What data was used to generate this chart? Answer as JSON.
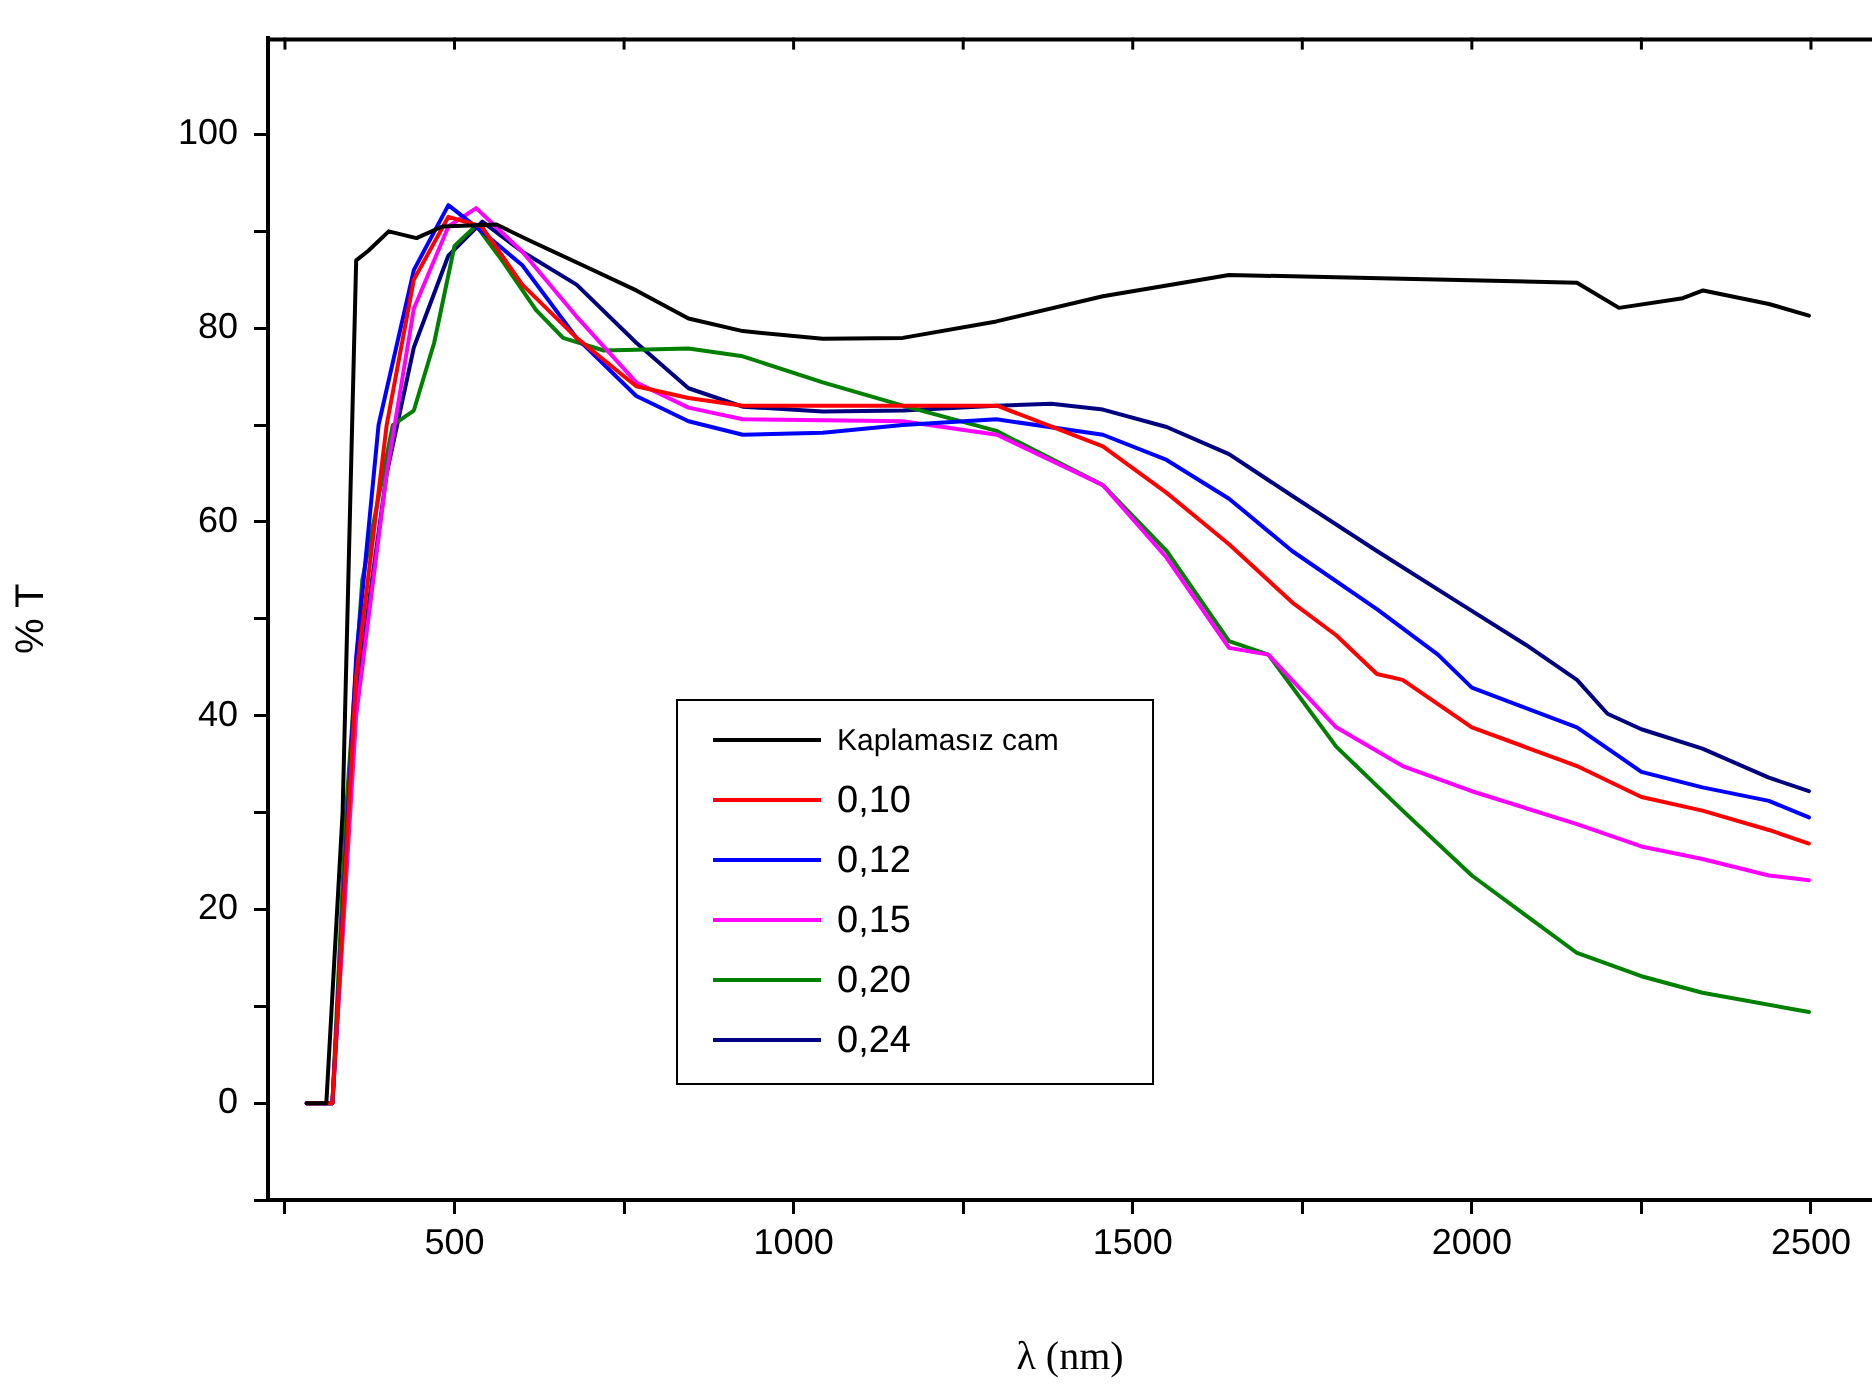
{
  "chart_data": {
    "type": "line",
    "xlabel": "λ (nm)",
    "ylabel": "% T",
    "xlim": [
      225,
      2590
    ],
    "ylim": [
      -10,
      110
    ],
    "xticks": [
      {
        "value": 250,
        "label": null
      },
      500,
      {
        "value": 750,
        "label": null
      },
      1000,
      {
        "value": 1250,
        "label": null
      },
      1500,
      {
        "value": 1750,
        "label": null
      },
      2000,
      {
        "value": 2250,
        "label": null
      },
      2500
    ],
    "yticks": [
      {
        "value": -10,
        "label": null
      },
      0,
      {
        "value": 10,
        "label": null
      },
      20,
      {
        "value": 30,
        "label": null
      },
      40,
      {
        "value": 50,
        "label": null
      },
      60,
      {
        "value": 70,
        "label": null
      },
      80,
      {
        "value": 90,
        "label": null
      },
      100
    ],
    "grid": false,
    "legend": "bottom",
    "marker": "none",
    "line_style": "solid",
    "series": [
      {
        "name": "Kaplamasız cam",
        "color": "#000000",
        "x": [
          282,
          311,
          335,
          355,
          373,
          403,
          444,
          482,
          562,
          609,
          689,
          768,
          845,
          925,
          1043,
          1161,
          1299,
          1456,
          1642,
          1898,
          2155,
          2217,
          2311,
          2341,
          2438,
          2497
        ],
        "values": [
          0,
          0,
          30,
          87,
          88,
          90,
          89.3,
          90.5,
          90.7,
          89.1,
          86.5,
          83.9,
          81,
          79.7,
          78.9,
          79,
          80.7,
          83.3,
          85.5,
          85.1,
          84.7,
          82.1,
          83.1,
          83.9,
          82.5,
          81.3
        ]
      },
      {
        "name": "0,10",
        "color": "#ff0000",
        "x": [
          282,
          320,
          355,
          400,
          440,
          491,
          540,
          600,
          680,
          768,
          845,
          925,
          1100,
          1300,
          1456,
          1550,
          1642,
          1735,
          1800,
          1860,
          1898,
          2000,
          2155,
          2250,
          2340,
          2438,
          2497
        ],
        "values": [
          0,
          0,
          44,
          70,
          85,
          91.5,
          90.5,
          84.5,
          79,
          74,
          72.8,
          72,
          72,
          72,
          67.8,
          63,
          57.7,
          51.7,
          48.3,
          44.3,
          43.7,
          38.8,
          34.8,
          31.6,
          30.2,
          28.2,
          26.8
        ]
      },
      {
        "name": "0,12",
        "color": "#0000ff",
        "x": [
          282,
          320,
          355,
          388,
          440,
          491,
          540,
          600,
          680,
          768,
          845,
          925,
          1043,
          1161,
          1299,
          1456,
          1550,
          1642,
          1735,
          1860,
          1950,
          2000,
          2155,
          2250,
          2340,
          2438,
          2497
        ],
        "values": [
          0,
          0,
          46,
          70,
          86,
          92.7,
          90,
          86.5,
          79,
          73,
          70.4,
          69,
          69.2,
          70,
          70.6,
          69,
          66.4,
          62.4,
          57,
          51,
          46.3,
          42.9,
          38.8,
          34.2,
          32.6,
          31.2,
          29.5
        ]
      },
      {
        "name": "0,15",
        "color": "#ff00ff",
        "x": [
          282,
          320,
          355,
          400,
          440,
          491,
          532,
          600,
          680,
          768,
          845,
          925,
          1043,
          1161,
          1300,
          1456,
          1550,
          1642,
          1700,
          1800,
          1898,
          2000,
          2155,
          2250,
          2340,
          2438,
          2497
        ],
        "values": [
          0,
          0,
          40,
          65,
          82,
          90.5,
          92.4,
          87.9,
          81.2,
          74.4,
          71.8,
          70.6,
          70.5,
          70.4,
          69,
          63.8,
          56.3,
          47,
          46.3,
          38.8,
          34.8,
          32.2,
          28.8,
          26.5,
          25.2,
          23.5,
          23
        ]
      },
      {
        "name": "0,20",
        "color": "#008000",
        "x": [
          282,
          320,
          340,
          364,
          409,
          440,
          470,
          500,
          532,
          570,
          620,
          660,
          720,
          845,
          925,
          1043,
          1161,
          1299,
          1456,
          1550,
          1642,
          1700,
          1800,
          1898,
          2000,
          2155,
          2250,
          2340,
          2497
        ],
        "values": [
          0,
          0,
          30,
          54,
          70,
          71.5,
          78.5,
          88.5,
          90.6,
          87,
          81.9,
          79,
          77.7,
          77.9,
          77.1,
          74.4,
          72,
          69.4,
          63.8,
          57,
          47.7,
          46.3,
          36.8,
          30.2,
          23.5,
          15.5,
          13.1,
          11.4,
          9.4
        ]
      },
      {
        "name": "0,24",
        "color": "#000080",
        "x": [
          282,
          320,
          355,
          400,
          440,
          491,
          541,
          600,
          680,
          768,
          845,
          925,
          1043,
          1161,
          1299,
          1380,
          1456,
          1550,
          1642,
          1735,
          1860,
          1980,
          2080,
          2155,
          2200,
          2250,
          2340,
          2438,
          2497
        ],
        "values": [
          0,
          0,
          42,
          65,
          78,
          87.5,
          91,
          87.9,
          84.5,
          78.5,
          73.8,
          71.9,
          71.4,
          71.5,
          72,
          72.2,
          71.6,
          69.8,
          67,
          62.7,
          57,
          51.7,
          47.3,
          43.7,
          40.2,
          38.6,
          36.6,
          33.6,
          32.2
        ]
      }
    ]
  }
}
